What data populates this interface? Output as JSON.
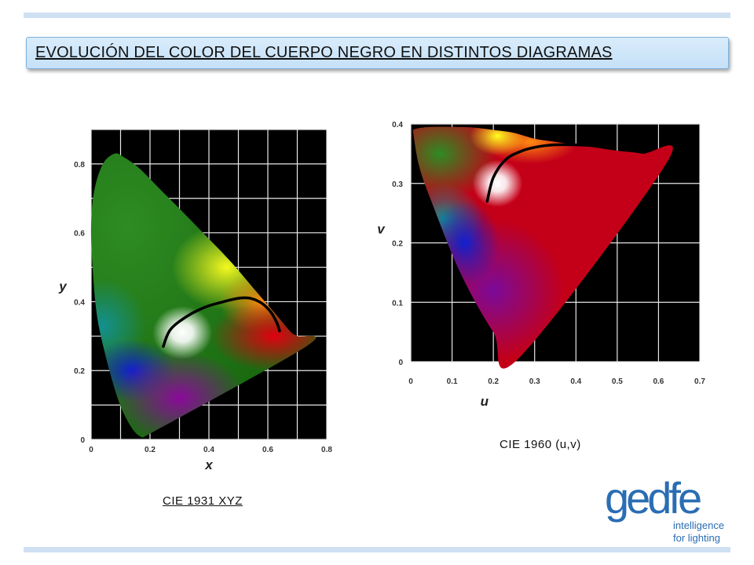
{
  "slide": {
    "title": "EVOLUCIÓN DEL COLOR DEL CUERPO NEGRO EN DISTINTOS DIAGRAMAS",
    "caption_left": "CIE 1931 XYZ",
    "caption_right": "CIE 1960 (u,v)"
  },
  "logo": {
    "wordmark": "gedfe",
    "tagline_line1": "intelligence",
    "tagline_line2": "for lighting",
    "color": "#2a6db3"
  },
  "chart_data": [
    {
      "type": "scatter",
      "title": "",
      "xlabel": "x",
      "ylabel": "y",
      "xticks": [
        "0",
        "0.2",
        "0.4",
        "0.6",
        "0.8"
      ],
      "yticks": [
        "0",
        "0.2",
        "0.4",
        "0.6",
        "0.8"
      ],
      "xlim": [
        0,
        0.8
      ],
      "ylim": [
        0,
        0.9
      ],
      "grid": true,
      "background": "#000000",
      "gamut_outline": {
        "x": [
          0.175,
          0.15,
          0.12,
          0.09,
          0.05,
          0.02,
          0.005,
          0.0,
          0.01,
          0.04,
          0.08,
          0.11,
          0.16,
          0.23,
          0.3,
          0.38,
          0.47,
          0.56,
          0.63,
          0.68,
          0.7,
          0.73
        ],
        "y": [
          0.005,
          0.02,
          0.06,
          0.12,
          0.24,
          0.36,
          0.5,
          0.62,
          0.72,
          0.8,
          0.83,
          0.82,
          0.79,
          0.73,
          0.67,
          0.6,
          0.52,
          0.43,
          0.36,
          0.31,
          0.3,
          0.27
        ]
      },
      "locus": {
        "x": [
          0.245,
          0.27,
          0.33,
          0.39,
          0.45,
          0.5,
          0.54,
          0.58,
          0.61,
          0.63,
          0.64
        ],
        "y": [
          0.27,
          0.32,
          0.36,
          0.385,
          0.4,
          0.41,
          0.41,
          0.395,
          0.37,
          0.34,
          0.315
        ]
      }
    },
    {
      "type": "scatter",
      "title": "",
      "xlabel": "u",
      "ylabel": "v",
      "xticks": [
        "0",
        "0.1",
        "0.2",
        "0.3",
        "0.4",
        "0.5",
        "0.6",
        "0.7"
      ],
      "yticks": [
        "0",
        "0.1",
        "0.2",
        "0.3",
        "0.4"
      ],
      "xlim": [
        0,
        0.7
      ],
      "ylim": [
        0,
        0.4
      ],
      "grid": true,
      "background": "#000000",
      "gamut_outline": {
        "x": [
          0.005,
          0.02,
          0.05,
          0.1,
          0.15,
          0.2,
          0.25,
          0.3,
          0.35,
          0.4,
          0.45,
          0.5,
          0.56,
          0.62,
          0.26,
          0.2,
          0.12,
          0.05,
          0.02
        ],
        "y": [
          0.39,
          0.393,
          0.395,
          0.395,
          0.394,
          0.39,
          0.385,
          0.375,
          0.37,
          0.365,
          0.36,
          0.355,
          0.35,
          0.335,
          0.005,
          0.05,
          0.15,
          0.27,
          0.33
        ]
      },
      "locus": {
        "x": [
          0.185,
          0.2,
          0.23,
          0.27,
          0.31,
          0.35,
          0.39,
          0.43,
          0.47
        ],
        "y": [
          0.27,
          0.31,
          0.34,
          0.355,
          0.362,
          0.365,
          0.365,
          0.364,
          0.362
        ]
      }
    }
  ]
}
